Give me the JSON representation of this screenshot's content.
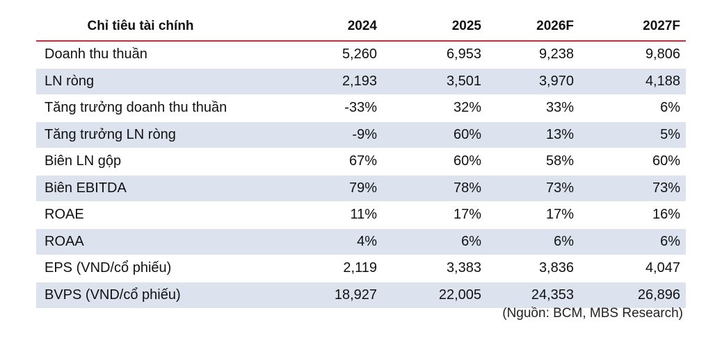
{
  "table": {
    "headers": [
      "Chỉ tiêu tài chính",
      "2024",
      "2025",
      "2026F",
      "2027F"
    ],
    "rows": [
      {
        "label": "Doanh thu thuần",
        "values": [
          "5,260",
          "6,953",
          "9,238",
          "9,806"
        ]
      },
      {
        "label": "LN ròng",
        "values": [
          "2,193",
          "3,501",
          "3,970",
          "4,188"
        ]
      },
      {
        "label": "Tăng trưởng doanh thu thuần",
        "values": [
          "-33%",
          "32%",
          "33%",
          "6%"
        ]
      },
      {
        "label": "Tăng trưởng LN ròng",
        "values": [
          "-9%",
          "60%",
          "13%",
          "5%"
        ]
      },
      {
        "label": "Biên LN gộp",
        "values": [
          "67%",
          "60%",
          "58%",
          "60%"
        ]
      },
      {
        "label": "Biên EBITDA",
        "values": [
          "79%",
          "78%",
          "73%",
          "73%"
        ]
      },
      {
        "label": "ROAE",
        "values": [
          "11%",
          "17%",
          "17%",
          "16%"
        ]
      },
      {
        "label": "ROAA",
        "values": [
          "4%",
          "6%",
          "6%",
          "6%"
        ]
      },
      {
        "label": "EPS (VND/cổ phiếu)",
        "values": [
          "2,119",
          "3,383",
          "3,836",
          "4,047"
        ]
      },
      {
        "label": "BVPS (VND/cổ phiếu)",
        "values": [
          "18,927",
          "22,005",
          "24,353",
          "26,896"
        ]
      }
    ]
  },
  "source": "(Nguồn: BCM, MBS Research)",
  "colors": {
    "header_rule": "#b8323f",
    "row_shade": "#dce3ef"
  }
}
